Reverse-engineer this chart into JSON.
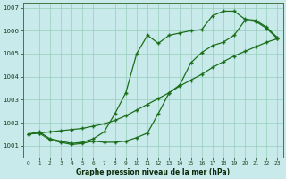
{
  "title": "Graphe pression niveau de la mer (hPa)",
  "hours": [
    0,
    1,
    2,
    3,
    4,
    5,
    6,
    7,
    8,
    9,
    10,
    11,
    12,
    13,
    14,
    15,
    16,
    17,
    18,
    19,
    20,
    21,
    22,
    23
  ],
  "line_upper": [
    1001.5,
    1001.6,
    1001.3,
    1001.2,
    1001.1,
    1001.15,
    1001.3,
    1001.6,
    1002.4,
    1003.3,
    1005.0,
    1005.8,
    1005.45,
    1005.8,
    1005.9,
    1006.0,
    1006.05,
    1006.65,
    1006.85,
    1006.85,
    1006.5,
    1006.45,
    1006.15,
    1005.7
  ],
  "line_diag": [
    1001.5,
    1001.55,
    1001.6,
    1001.65,
    1001.7,
    1001.75,
    1001.85,
    1001.95,
    1002.1,
    1002.3,
    1002.55,
    1002.8,
    1003.05,
    1003.3,
    1003.6,
    1003.85,
    1004.1,
    1004.4,
    1004.65,
    1004.9,
    1005.1,
    1005.3,
    1005.5,
    1005.65
  ],
  "line_lower": [
    1001.5,
    1001.55,
    1001.25,
    1001.15,
    1001.05,
    1001.1,
    1001.2,
    1001.15,
    1001.15,
    1001.2,
    1001.35,
    1001.55,
    1002.4,
    1003.3,
    1003.65,
    1004.6,
    1005.05,
    1005.35,
    1005.5,
    1005.8,
    1006.45,
    1006.4,
    1006.1,
    1005.65
  ],
  "ylim": [
    1000.5,
    1007.2
  ],
  "yticks": [
    1001,
    1002,
    1003,
    1004,
    1005,
    1006,
    1007
  ],
  "line_color": "#1a6e1a",
  "bg_color": "#c8eaea",
  "grid_color": "#98ccbb",
  "marker": "+"
}
